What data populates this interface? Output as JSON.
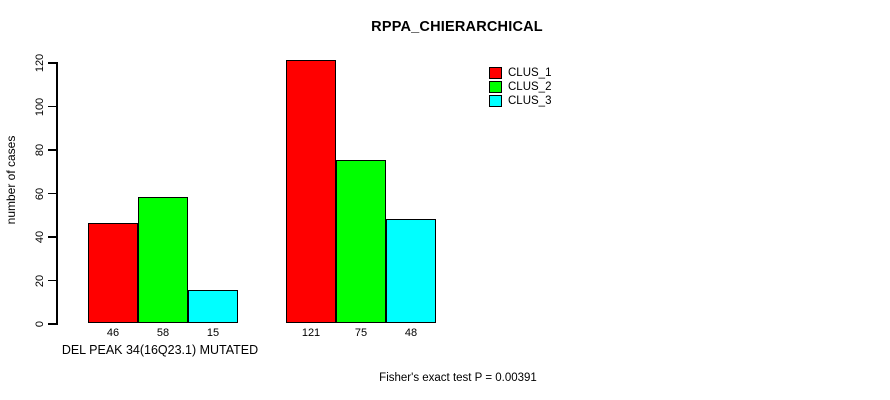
{
  "title": "RPPA_CHIERARCHICAL",
  "ylabel": "number of cases",
  "group_label": "DEL PEAK 34(16Q23.1) MUTATED",
  "annotation": "Fisher's exact test P = 0.00391",
  "legend": [
    {
      "label": "CLUS_1",
      "color": "#ff0000"
    },
    {
      "label": "CLUS_2",
      "color": "#00ff00"
    },
    {
      "label": "CLUS_3",
      "color": "#00ffff"
    }
  ],
  "chart_data": {
    "type": "bar",
    "title": "RPPA_CHIERARCHICAL",
    "xlabel": "DEL PEAK 34(16Q23.1) MUTATED",
    "ylabel": "number of cases",
    "categories": [
      "DEL PEAK 34(16Q23.1) MUTATED",
      ""
    ],
    "series": [
      {
        "name": "CLUS_1",
        "color": "#ff0000",
        "values": [
          46,
          121
        ]
      },
      {
        "name": "CLUS_2",
        "color": "#00ff00",
        "values": [
          58,
          75
        ]
      },
      {
        "name": "CLUS_3",
        "color": "#00ffff",
        "values": [
          15,
          48
        ]
      }
    ],
    "bar_value_labels": [
      [
        "46",
        "58",
        "15"
      ],
      [
        "121",
        "75",
        "48"
      ]
    ],
    "yticks": [
      0,
      20,
      40,
      60,
      80,
      100,
      120
    ],
    "ylim": [
      0,
      120
    ],
    "grid": false,
    "legend_position": "top-right",
    "annotation": "Fisher's exact test P = 0.00391"
  }
}
